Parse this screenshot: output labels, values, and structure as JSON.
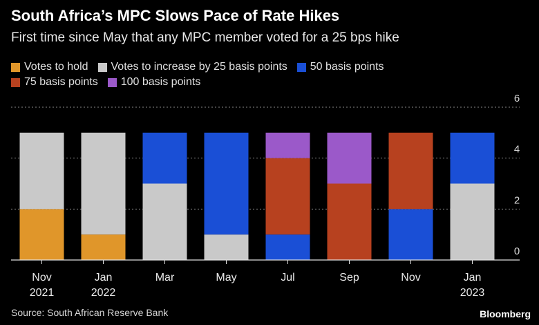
{
  "header": {
    "title": "South Africa’s MPC Slows Pace of Rate Hikes",
    "subtitle": "First time since May that any MPC member voted for a 25 bps hike"
  },
  "footer": {
    "source": "Source: South African Reserve Bank",
    "brand": "Bloomberg"
  },
  "chart_data": {
    "type": "bar",
    "stacked": true,
    "categories": [
      [
        "Nov",
        "2021"
      ],
      [
        "Jan",
        "2022"
      ],
      [
        "Mar"
      ],
      [
        "May"
      ],
      [
        "Jul"
      ],
      [
        "Sep"
      ],
      [
        "Nov"
      ],
      [
        "Jan",
        "2023"
      ]
    ],
    "series": [
      {
        "name": "Votes to hold",
        "color": "#e0962a",
        "values": [
          2,
          1,
          0,
          0,
          0,
          0,
          0,
          0
        ]
      },
      {
        "name": "Votes to increase by 25 basis points",
        "color": "#c9c9c9",
        "values": [
          3,
          4,
          3,
          1,
          0,
          0,
          0,
          3
        ]
      },
      {
        "name": "50 basis points",
        "color": "#1a4fd6",
        "values": [
          0,
          0,
          2,
          4,
          1,
          0,
          2,
          2
        ]
      },
      {
        "name": "75 basis points",
        "color": "#b7411f",
        "values": [
          0,
          0,
          0,
          0,
          3,
          3,
          3,
          0
        ]
      },
      {
        "name": "100 basis points",
        "color": "#9b59c9",
        "values": [
          0,
          0,
          0,
          0,
          1,
          2,
          0,
          0
        ]
      }
    ],
    "ylim": [
      0,
      6
    ],
    "yticks": [
      0,
      2,
      4,
      6
    ],
    "grid": true,
    "title": "South Africa’s MPC Slows Pace of Rate Hikes",
    "xlabel": "",
    "ylabel": ""
  }
}
